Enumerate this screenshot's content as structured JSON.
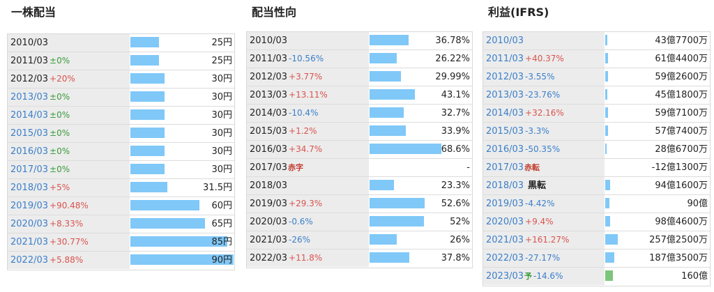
{
  "dividend": {
    "title": "一株配当",
    "rows": [
      {
        "year": "2010/03",
        "year_style": "dark",
        "change": "",
        "change_style": "",
        "value": "25円",
        "bar": 0.28
      },
      {
        "year": "2011/03",
        "year_style": "dark",
        "change": "±0%",
        "change_style": "flat",
        "value": "25円",
        "bar": 0.28
      },
      {
        "year": "2012/03",
        "year_style": "dark",
        "change": "+20%",
        "change_style": "up",
        "value": "30円",
        "bar": 0.33
      },
      {
        "year": "2013/03",
        "year_style": "blue",
        "change": "±0%",
        "change_style": "flat",
        "value": "30円",
        "bar": 0.33
      },
      {
        "year": "2014/03",
        "year_style": "blue",
        "change": "±0%",
        "change_style": "flat",
        "value": "30円",
        "bar": 0.33
      },
      {
        "year": "2015/03",
        "year_style": "blue",
        "change": "±0%",
        "change_style": "flat",
        "value": "30円",
        "bar": 0.33
      },
      {
        "year": "2016/03",
        "year_style": "blue",
        "change": "±0%",
        "change_style": "flat",
        "value": "30円",
        "bar": 0.33
      },
      {
        "year": "2017/03",
        "year_style": "blue",
        "change": "±0%",
        "change_style": "flat",
        "value": "30円",
        "bar": 0.33
      },
      {
        "year": "2018/03",
        "year_style": "blue",
        "change": "+5%",
        "change_style": "up",
        "value": "31.5円",
        "bar": 0.36
      },
      {
        "year": "2019/03",
        "year_style": "blue",
        "change": "+90.48%",
        "change_style": "up",
        "value": "60円",
        "bar": 0.67
      },
      {
        "year": "2020/03",
        "year_style": "blue",
        "change": "+8.33%",
        "change_style": "up",
        "value": "65円",
        "bar": 0.72
      },
      {
        "year": "2021/03",
        "year_style": "blue",
        "change": "+30.77%",
        "change_style": "up",
        "value": "85円",
        "bar": 0.94
      },
      {
        "year": "2022/03",
        "year_style": "blue",
        "change": "+5.88%",
        "change_style": "up",
        "value": "90円",
        "bar": 1.0
      }
    ]
  },
  "payout": {
    "title": "配当性向",
    "rows": [
      {
        "year": "2010/03",
        "year_style": "dark",
        "change": "",
        "change_style": "",
        "note": "",
        "note_style": "",
        "value": "36.78%",
        "bar": 0.54
      },
      {
        "year": "2011/03",
        "year_style": "dark",
        "change": "-10.56%",
        "change_style": "down",
        "note": "",
        "note_style": "",
        "value": "26.22%",
        "bar": 0.38
      },
      {
        "year": "2012/03",
        "year_style": "dark",
        "change": "+3.77%",
        "change_style": "up",
        "note": "",
        "note_style": "",
        "value": "29.99%",
        "bar": 0.44
      },
      {
        "year": "2013/03",
        "year_style": "dark",
        "change": "+13.11%",
        "change_style": "up",
        "note": "",
        "note_style": "",
        "value": "43.1%",
        "bar": 0.63
      },
      {
        "year": "2014/03",
        "year_style": "dark",
        "change": "-10.4%",
        "change_style": "down",
        "note": "",
        "note_style": "",
        "value": "32.7%",
        "bar": 0.48
      },
      {
        "year": "2015/03",
        "year_style": "dark",
        "change": "+1.2%",
        "change_style": "up",
        "note": "",
        "note_style": "",
        "value": "33.9%",
        "bar": 0.5
      },
      {
        "year": "2016/03",
        "year_style": "dark",
        "change": "+34.7%",
        "change_style": "up",
        "note": "",
        "note_style": "",
        "value": "68.6%",
        "bar": 1.0
      },
      {
        "year": "2017/03",
        "year_style": "dark",
        "change": "",
        "change_style": "",
        "note": "赤字",
        "note_style": "red",
        "value": "-",
        "bar": 0
      },
      {
        "year": "2018/03",
        "year_style": "dark",
        "change": "",
        "change_style": "",
        "note": "",
        "note_style": "",
        "value": "23.3%",
        "bar": 0.34
      },
      {
        "year": "2019/03",
        "year_style": "dark",
        "change": "+29.3%",
        "change_style": "up",
        "note": "",
        "note_style": "",
        "value": "52.6%",
        "bar": 0.77
      },
      {
        "year": "2020/03",
        "year_style": "dark",
        "change": "-0.6%",
        "change_style": "down",
        "note": "",
        "note_style": "",
        "value": "52%",
        "bar": 0.76
      },
      {
        "year": "2021/03",
        "year_style": "dark",
        "change": "-26%",
        "change_style": "down",
        "note": "",
        "note_style": "",
        "value": "26%",
        "bar": 0.38
      },
      {
        "year": "2022/03",
        "year_style": "dark",
        "change": "+11.8%",
        "change_style": "up",
        "note": "",
        "note_style": "",
        "value": "37.8%",
        "bar": 0.55
      }
    ]
  },
  "profit": {
    "title": "利益(IFRS)",
    "rows": [
      {
        "year": "2010/03",
        "change": "",
        "change_style": "",
        "note": "",
        "note_style": "",
        "value": "43億7700万",
        "bar": 0.17,
        "bar_style": "blue"
      },
      {
        "year": "2011/03",
        "change": "+40.37%",
        "change_style": "up",
        "note": "",
        "note_style": "",
        "value": "61億4400万",
        "bar": 0.24,
        "bar_style": "blue"
      },
      {
        "year": "2012/03",
        "change": "-3.55%",
        "change_style": "down",
        "note": "",
        "note_style": "",
        "value": "59億2600万",
        "bar": 0.23,
        "bar_style": "blue"
      },
      {
        "year": "2013/03",
        "change": "-23.76%",
        "change_style": "down",
        "note": "",
        "note_style": "",
        "value": "45億1800万",
        "bar": 0.18,
        "bar_style": "blue"
      },
      {
        "year": "2014/03",
        "change": "+32.16%",
        "change_style": "up",
        "note": "",
        "note_style": "",
        "value": "59億7100万",
        "bar": 0.23,
        "bar_style": "blue"
      },
      {
        "year": "2015/03",
        "change": "-3.3%",
        "change_style": "down",
        "note": "",
        "note_style": "",
        "value": "57億7400万",
        "bar": 0.22,
        "bar_style": "blue"
      },
      {
        "year": "2016/03",
        "change": "-50.35%",
        "change_style": "down",
        "note": "",
        "note_style": "",
        "value": "28億6700万",
        "bar": 0.11,
        "bar_style": "blue"
      },
      {
        "year": "2017/03",
        "change": "",
        "change_style": "",
        "note": "赤転",
        "note_style": "red",
        "value": "-12億1300万",
        "bar": 0,
        "bar_style": "blue"
      },
      {
        "year": "2018/03",
        "change": "",
        "change_style": "",
        "note": "黒転",
        "note_style": "black",
        "value": "94億1600万",
        "bar": 0.37,
        "bar_style": "blue"
      },
      {
        "year": "2019/03",
        "change": "-4.42%",
        "change_style": "down",
        "note": "",
        "note_style": "",
        "value": "90億",
        "bar": 0.35,
        "bar_style": "blue"
      },
      {
        "year": "2020/03",
        "change": "+9.4%",
        "change_style": "up",
        "note": "",
        "note_style": "",
        "value": "98億4600万",
        "bar": 0.38,
        "bar_style": "blue"
      },
      {
        "year": "2021/03",
        "change": "+161.27%",
        "change_style": "up",
        "note": "",
        "note_style": "",
        "value": "257億2500万",
        "bar": 1.0,
        "bar_style": "blue"
      },
      {
        "year": "2022/03",
        "change": "-27.17%",
        "change_style": "down",
        "note": "",
        "note_style": "",
        "value": "187億3500万",
        "bar": 0.73,
        "bar_style": "blue"
      },
      {
        "year": "2023/03",
        "change": "-14.6%",
        "change_style": "down",
        "note": "予",
        "note_style": "green",
        "value": "160億",
        "bar": 0.62,
        "bar_style": "green"
      }
    ]
  }
}
